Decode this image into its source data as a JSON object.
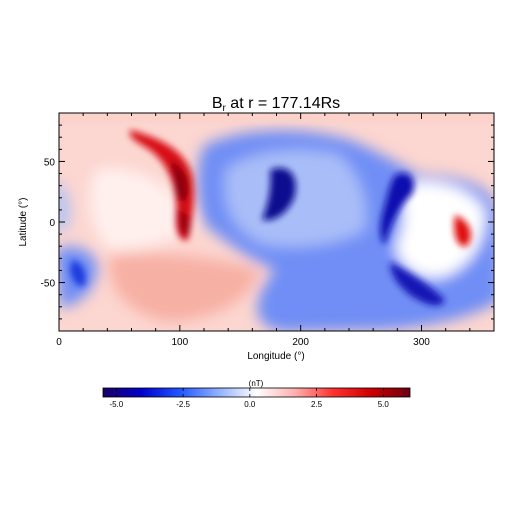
{
  "chart_data": {
    "type": "heatmap",
    "title": "B",
    "title_subscript": "r",
    "title_rest": " at r = 177.14Rs",
    "xlabel": "Longitude (°)",
    "ylabel": "Latitude (°)",
    "xlim": [
      0,
      360
    ],
    "ylim": [
      -90,
      90
    ],
    "x_ticks": [
      0,
      100,
      200,
      300
    ],
    "y_ticks": [
      -50,
      0,
      50
    ],
    "grid": false,
    "colorbar": {
      "label": "(nT)",
      "range": [
        -5.5,
        6.0
      ],
      "ticks": [
        -5.0,
        -2.5,
        0.0,
        2.5,
        5.0
      ],
      "tick_labels": [
        "-5.0",
        "-2.5",
        "0.0",
        "2.5",
        "5.0"
      ],
      "colors": [
        "#1a0066",
        "#0000cc",
        "#2255ff",
        "#8fb0ff",
        "#ffffff",
        "#ffb0b0",
        "#ff3030",
        "#cc0000",
        "#6a0010"
      ]
    },
    "polarity_regions": [
      {
        "polarity": "positive",
        "lon_range": [
          0,
          150
        ],
        "lat_range": [
          -90,
          90
        ]
      },
      {
        "polarity": "negative",
        "lon_range": [
          140,
          300
        ],
        "lat_range": [
          -90,
          80
        ]
      },
      {
        "polarity": "positive",
        "lon_range": [
          290,
          360
        ],
        "lat_range": [
          -40,
          45
        ]
      },
      {
        "polarity": "negative",
        "lon_range": [
          0,
          40
        ],
        "lat_range": [
          -70,
          -25
        ]
      },
      {
        "polarity": "positive",
        "lon_range": [
          0,
          360
        ],
        "lat_range": [
          80,
          90
        ]
      }
    ]
  }
}
